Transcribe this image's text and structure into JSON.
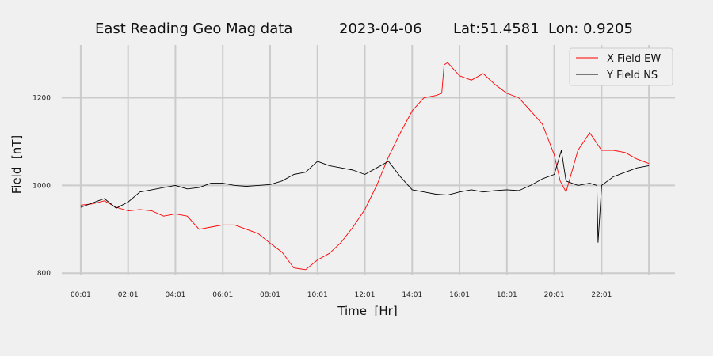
{
  "chart_data": {
    "type": "line",
    "title": "East Reading Geo Mag data",
    "date": "2023-04-06",
    "location": "Lat:51.4581  Lon: 0.9205",
    "xlabel": "Time  [Hr]",
    "ylabel": "Field  [nT]",
    "x_unit": "hours",
    "x_tick_values": [
      0,
      2,
      4,
      6,
      8,
      10,
      12,
      14,
      16,
      18,
      20,
      22
    ],
    "x_tick_labels": [
      "00:01",
      "02:01",
      "04:01",
      "06:01",
      "08:01",
      "10:01",
      "12:01",
      "14:01",
      "16:01",
      "18:01",
      "20:01",
      "22:01"
    ],
    "xlim": [
      -0.8,
      25.1
    ],
    "ylim": [
      795,
      1320
    ],
    "y_ticks": [
      800,
      1000,
      1200
    ],
    "grid": true,
    "legend": "top-right",
    "series": [
      {
        "name": "X Field EW",
        "color": "#ff0000",
        "x": [
          0,
          0.5,
          1,
          1.5,
          2,
          2.5,
          3,
          3.5,
          4,
          4.5,
          5,
          5.5,
          6,
          6.5,
          7,
          7.5,
          8,
          8.5,
          9,
          9.5,
          10,
          10.5,
          11,
          11.5,
          12,
          12.5,
          13,
          13.5,
          14,
          14.5,
          15,
          15.25,
          15.35,
          15.5,
          16,
          16.5,
          17,
          17.5,
          18,
          18.5,
          19,
          19.5,
          20,
          20.25,
          20.5,
          21,
          21.5,
          22,
          22.5,
          23,
          23.5,
          24
        ],
        "y": [
          955,
          958,
          965,
          950,
          942,
          945,
          942,
          930,
          935,
          930,
          900,
          905,
          910,
          910,
          900,
          890,
          868,
          848,
          812,
          808,
          830,
          845,
          870,
          905,
          945,
          1000,
          1065,
          1120,
          1170,
          1200,
          1205,
          1210,
          1275,
          1280,
          1250,
          1240,
          1255,
          1230,
          1210,
          1200,
          1170,
          1140,
          1070,
          1010,
          985,
          1080,
          1120,
          1080,
          1080,
          1075,
          1060,
          1050
        ]
      },
      {
        "name": "Y Field NS",
        "color": "#000000",
        "x": [
          0,
          0.5,
          1,
          1.5,
          2,
          2.5,
          3,
          3.5,
          4,
          4.5,
          5,
          5.5,
          6,
          6.5,
          7,
          7.5,
          8,
          8.5,
          9,
          9.5,
          10,
          10.5,
          11,
          11.5,
          12,
          12.5,
          13,
          13.5,
          14,
          14.5,
          15,
          15.5,
          16,
          16.5,
          17,
          17.5,
          18,
          18.5,
          19,
          19.5,
          20,
          20.3,
          20.5,
          21,
          21.5,
          21.8,
          21.85,
          22,
          22.5,
          23,
          23.5,
          24
        ],
        "y": [
          950,
          960,
          970,
          948,
          962,
          985,
          990,
          995,
          1000,
          992,
          995,
          1005,
          1005,
          1000,
          998,
          1000,
          1002,
          1010,
          1025,
          1030,
          1055,
          1045,
          1040,
          1035,
          1025,
          1040,
          1055,
          1020,
          990,
          985,
          980,
          978,
          985,
          990,
          985,
          988,
          990,
          988,
          1000,
          1015,
          1025,
          1080,
          1010,
          1000,
          1005,
          1000,
          870,
          1000,
          1020,
          1030,
          1040,
          1045
        ]
      }
    ]
  }
}
